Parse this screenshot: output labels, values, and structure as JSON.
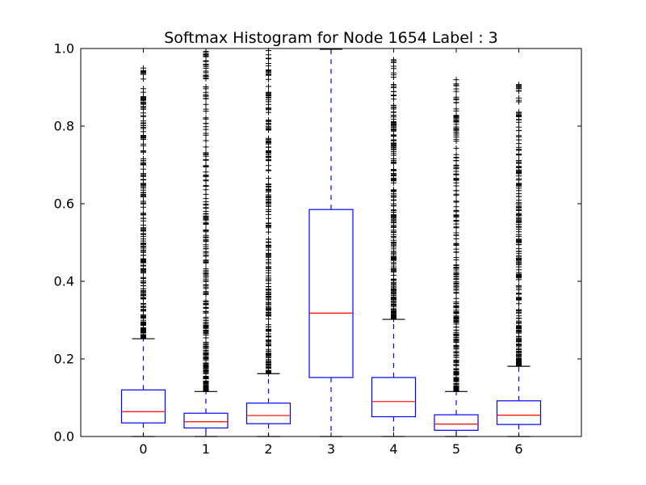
{
  "chart_data": {
    "type": "box",
    "title": "Softmax Histogram for Node 1654 Label : 3",
    "xlabel": "",
    "ylabel": "",
    "ylim": [
      0.0,
      1.0
    ],
    "yticks": [
      "0.0",
      "0.2",
      "0.4",
      "0.6",
      "0.8",
      "1.0"
    ],
    "categories": [
      "0",
      "1",
      "2",
      "3",
      "4",
      "5",
      "6"
    ],
    "boxes": [
      {
        "category": "0",
        "q1": 0.035,
        "median": 0.064,
        "q3": 0.12,
        "whisker_low": 0.0,
        "whisker_high": 0.252,
        "outliers_range": [
          0.252,
          0.955
        ]
      },
      {
        "category": "1",
        "q1": 0.022,
        "median": 0.038,
        "q3": 0.06,
        "whisker_low": 0.0,
        "whisker_high": 0.116,
        "outliers_range": [
          0.116,
          1.0
        ]
      },
      {
        "category": "2",
        "q1": 0.033,
        "median": 0.054,
        "q3": 0.086,
        "whisker_low": 0.0,
        "whisker_high": 0.162,
        "outliers_range": [
          0.162,
          1.0
        ]
      },
      {
        "category": "3",
        "q1": 0.152,
        "median": 0.318,
        "q3": 0.585,
        "whisker_low": 0.0,
        "whisker_high": 0.998,
        "outliers_range": null
      },
      {
        "category": "4",
        "q1": 0.051,
        "median": 0.09,
        "q3": 0.152,
        "whisker_low": 0.0,
        "whisker_high": 0.302,
        "outliers_range": [
          0.302,
          0.98
        ]
      },
      {
        "category": "5",
        "q1": 0.016,
        "median": 0.032,
        "q3": 0.056,
        "whisker_low": 0.0,
        "whisker_high": 0.116,
        "outliers_range": [
          0.116,
          0.92
        ]
      },
      {
        "category": "6",
        "q1": 0.031,
        "median": 0.055,
        "q3": 0.092,
        "whisker_low": 0.0,
        "whisker_high": 0.181,
        "outliers_range": [
          0.181,
          0.91
        ]
      }
    ],
    "grid": false,
    "colors": {
      "box": "#0000ff",
      "median": "#ff0000",
      "whisker": "#0000ff",
      "cap": "#000000",
      "flier": "#000000"
    }
  }
}
